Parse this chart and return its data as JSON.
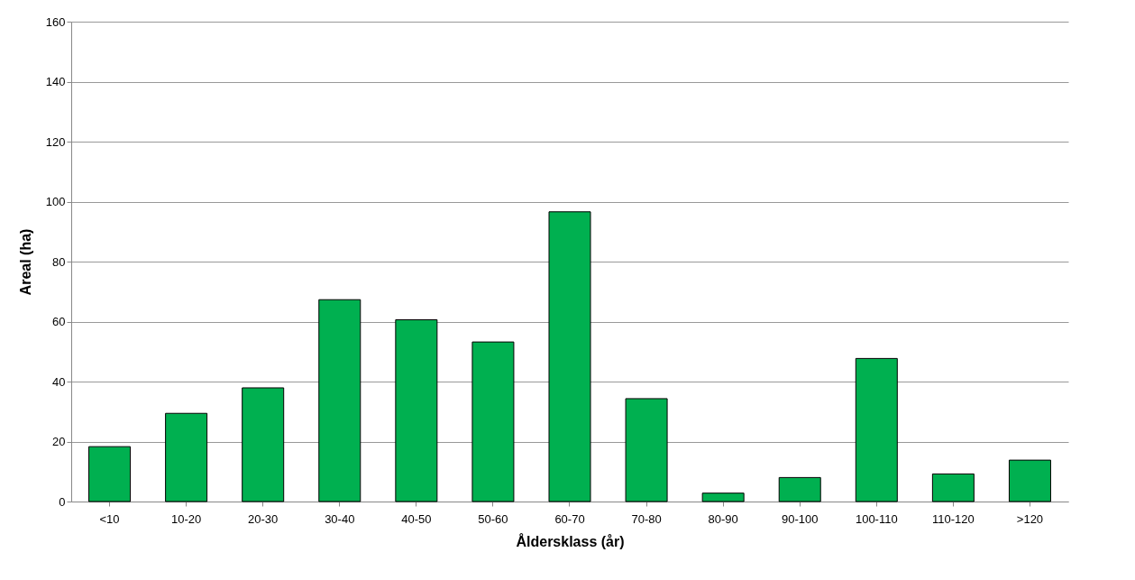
{
  "chart_data": {
    "type": "bar",
    "xlabel": "Åldersklass (år)",
    "ylabel": "Areal (ha)",
    "categories": [
      "<10",
      "10-20",
      "20-30",
      "30-40",
      "40-50",
      "50-60",
      "60-70",
      "70-80",
      "80-90",
      "90-100",
      "100-110",
      "110-120",
      ">120"
    ],
    "values": [
      18.3,
      29.4,
      37.9,
      67.3,
      60.6,
      53.2,
      96.6,
      34.3,
      2.8,
      8.0,
      47.7,
      9.2,
      13.8
    ],
    "color": "#00b050",
    "ylim": [
      0,
      160
    ],
    "yticks": [
      0,
      20,
      40,
      60,
      80,
      100,
      120,
      140,
      160
    ],
    "grid": "y"
  }
}
